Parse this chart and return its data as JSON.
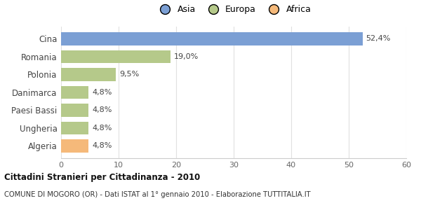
{
  "categories": [
    "Cina",
    "Romania",
    "Polonia",
    "Danimarca",
    "Paesi Bassi",
    "Ungheria",
    "Algeria"
  ],
  "values": [
    52.4,
    19.0,
    9.5,
    4.8,
    4.8,
    4.8,
    4.8
  ],
  "labels": [
    "52,4%",
    "19,0%",
    "9,5%",
    "4,8%",
    "4,8%",
    "4,8%",
    "4,8%"
  ],
  "colors": [
    "#7b9fd4",
    "#b5c98a",
    "#b5c98a",
    "#b5c98a",
    "#b5c98a",
    "#b5c98a",
    "#f5b97a"
  ],
  "legend": [
    {
      "label": "Asia",
      "color": "#7b9fd4"
    },
    {
      "label": "Europa",
      "color": "#b5c98a"
    },
    {
      "label": "Africa",
      "color": "#f5b97a"
    }
  ],
  "xlim": [
    0,
    60
  ],
  "xticks": [
    0,
    10,
    20,
    30,
    40,
    50,
    60
  ],
  "title_bold": "Cittadini Stranieri per Cittadinanza - 2010",
  "subtitle": "COMUNE DI MOGORO (OR) - Dati ISTAT al 1° gennaio 2010 - Elaborazione TUTTITALIA.IT",
  "background_color": "#ffffff",
  "bar_height": 0.72
}
